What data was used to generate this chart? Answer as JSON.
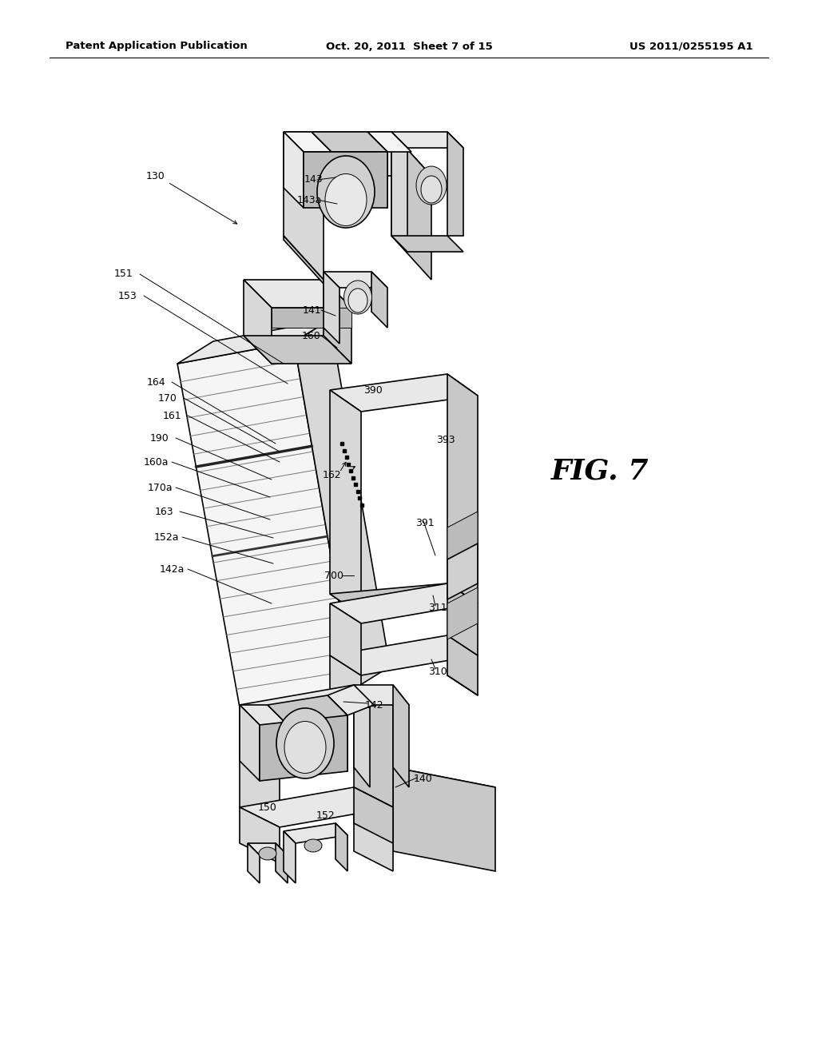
{
  "bg_color": "#ffffff",
  "line_color": "#000000",
  "header_left": "Patent Application Publication",
  "header_center": "Oct. 20, 2011  Sheet 7 of 15",
  "header_right": "US 2011/0255195 A1",
  "fig_label": "FIG. 7"
}
